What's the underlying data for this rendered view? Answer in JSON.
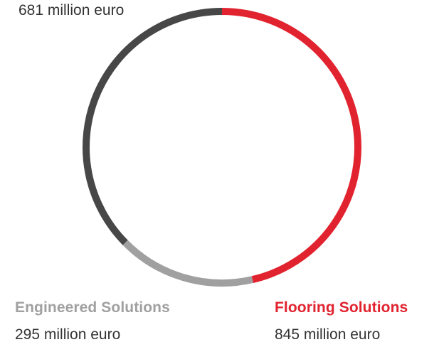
{
  "chart_data": {
    "type": "pie",
    "style": "donut-ring",
    "segments": [
      {
        "name": "Flooring Solutions",
        "value": 845,
        "value_label": "845 million euro",
        "color": "#e1232f"
      },
      {
        "name": "Engineered Solutions",
        "value": 295,
        "value_label": "295 million euro",
        "color": "#a0a0a0"
      },
      {
        "name": "",
        "value": 681,
        "value_label": "681 million euro",
        "color": "#474747"
      }
    ],
    "start_angle_deg": 0,
    "direction": "clockwise"
  },
  "labels": {
    "top_value": "681 million euro",
    "engineered_name": "Engineered Solutions",
    "engineered_value": "295 million euro",
    "flooring_name": "Flooring Solutions",
    "flooring_value": "845 million euro"
  },
  "colors": {
    "flooring": "#e1232f",
    "engineered": "#a0a0a0",
    "other": "#474747",
    "text": "#333333"
  }
}
